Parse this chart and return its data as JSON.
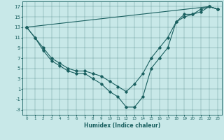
{
  "xlabel": "Humidex (Indice chaleur)",
  "xlim": [
    -0.5,
    23.5
  ],
  "ylim": [
    -4,
    18
  ],
  "xticks": [
    0,
    1,
    2,
    3,
    4,
    5,
    6,
    7,
    8,
    9,
    10,
    11,
    12,
    13,
    14,
    15,
    16,
    17,
    18,
    19,
    20,
    21,
    22,
    23
  ],
  "yticks": [
    -3,
    -1,
    1,
    3,
    5,
    7,
    9,
    11,
    13,
    15,
    17
  ],
  "bg_color": "#c8e8e8",
  "line_color": "#1a6060",
  "line1_x": [
    0,
    1,
    2,
    3,
    4,
    5,
    6,
    7,
    8,
    9,
    10,
    11,
    12,
    13,
    14,
    15,
    16,
    17,
    18,
    19,
    20,
    21,
    22,
    23
  ],
  "line1_y": [
    13,
    11,
    8.5,
    6.5,
    5.5,
    4.5,
    4,
    4,
    3,
    2,
    0.5,
    -0.5,
    -2.5,
    -2.5,
    -0.5,
    5,
    7,
    9,
    14,
    15.5,
    15.5,
    16.5,
    17,
    16.5
  ],
  "line2_x": [
    0,
    1,
    2,
    3,
    4,
    5,
    6,
    7,
    8,
    9,
    10,
    11,
    12,
    13,
    14,
    15,
    16,
    17,
    18,
    19,
    20,
    21,
    22,
    23
  ],
  "line2_y": [
    13,
    11,
    9,
    7,
    6,
    5,
    4.5,
    4.5,
    4,
    3.5,
    2.5,
    1.5,
    0.5,
    2,
    4,
    7,
    9,
    11,
    14,
    15,
    15.5,
    16,
    17,
    16.5
  ],
  "line3_x": [
    0,
    22,
    23
  ],
  "line3_y": [
    13,
    17,
    16.5
  ]
}
